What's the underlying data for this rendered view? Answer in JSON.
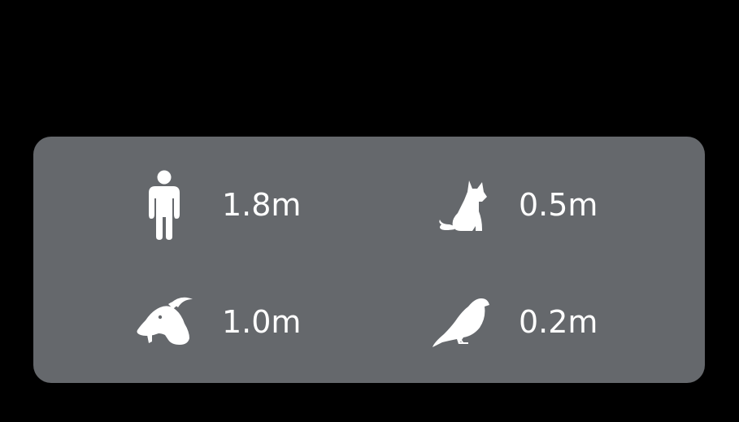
{
  "panel": {
    "background": "#65686c",
    "items": [
      {
        "icon": "person-icon",
        "value": "1.8m"
      },
      {
        "icon": "dog-icon",
        "value": "0.5m"
      },
      {
        "icon": "goat-icon",
        "value": "1.0m"
      },
      {
        "icon": "bird-icon",
        "value": "0.2m"
      }
    ]
  }
}
